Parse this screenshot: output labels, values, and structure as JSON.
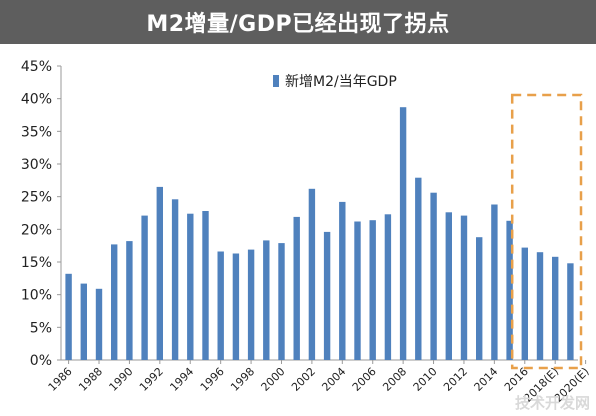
{
  "title": "M2增量/GDP已经出现了拐点",
  "watermark": "技术开发网",
  "colors": {
    "bar": "#4f81bd",
    "highlight_box": "#e8a04a",
    "title_bg": "#5e5e5e"
  },
  "chart_data": {
    "type": "bar",
    "series": [
      {
        "name": "新增M2/当年GDP",
        "values": [
          13.2,
          11.7,
          10.9,
          17.7,
          18.2,
          22.1,
          26.5,
          24.6,
          22.4,
          22.8,
          16.6,
          16.3,
          16.9,
          18.3,
          17.9,
          21.9,
          26.2,
          19.6,
          24.2,
          21.2,
          21.4,
          22.3,
          38.7,
          27.9,
          25.6,
          22.6,
          22.1,
          18.8,
          23.8,
          21.3,
          17.2,
          16.5,
          15.8,
          14.8
        ]
      }
    ],
    "x_tick_labels": [
      "1986",
      "1988",
      "1990",
      "1992",
      "1994",
      "1996",
      "1998",
      "2000",
      "2002",
      "2004",
      "2006",
      "2008",
      "2010",
      "2012",
      "2014",
      "2016",
      "2018(E)",
      "2020(E)"
    ],
    "y_tick_labels": [
      "0%",
      "5%",
      "10%",
      "15%",
      "20%",
      "25%",
      "30%",
      "35%",
      "40%",
      "45%"
    ],
    "ylim": [
      0,
      45
    ],
    "y_unit": "%",
    "legend_position": "top-center",
    "grid": false,
    "highlighted_bars": [
      30,
      31,
      32,
      33
    ]
  }
}
